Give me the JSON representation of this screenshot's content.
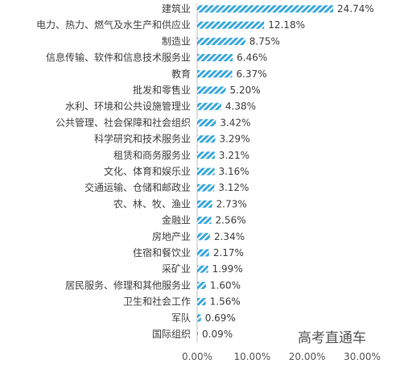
{
  "chart_data": {
    "type": "bar",
    "orientation": "horizontal",
    "categories": [
      "建筑业",
      "电力、热力、燃气及水生产和供应业",
      "制造业",
      "信息传输、软件和信息技术服务业",
      "教育",
      "批发和零售业",
      "水利、环境和公共设施管理业",
      "公共管理、社会保障和社会组织",
      "科学研究和技术服务业",
      "租赁和商务服务业",
      "文化、体育和娱乐业",
      "交通运输、仓储和邮政业",
      "农、林、牧、渔业",
      "金融业",
      "房地产业",
      "住宿和餐饮业",
      "采矿业",
      "居民服务、修理和其他服务业",
      "卫生和社会工作",
      "军队",
      "国际组织"
    ],
    "values": [
      24.74,
      12.18,
      8.75,
      6.46,
      6.37,
      5.2,
      4.38,
      3.42,
      3.29,
      3.21,
      3.16,
      3.12,
      2.73,
      2.56,
      2.34,
      2.17,
      1.99,
      1.6,
      1.56,
      0.69,
      0.09
    ],
    "value_labels": [
      "24.74%",
      "12.18%",
      "8.75%",
      "6.46%",
      "6.37%",
      "5.20%",
      "4.38%",
      "3.42%",
      "3.29%",
      "3.21%",
      "3.16%",
      "3.12%",
      "2.73%",
      "2.56%",
      "2.34%",
      "2.17%",
      "1.99%",
      "1.60%",
      "1.56%",
      "0.69%",
      "0.09%"
    ],
    "x_ticks": [
      "0.00%",
      "10.00%",
      "20.00%",
      "30.00%"
    ],
    "x_tick_values": [
      0,
      10,
      20,
      30
    ],
    "xlim": [
      0,
      30
    ],
    "grid": false,
    "bar_color": "#3aa8dc",
    "bar_pattern": "diagonal-stripes"
  },
  "watermark": "高考直通车"
}
